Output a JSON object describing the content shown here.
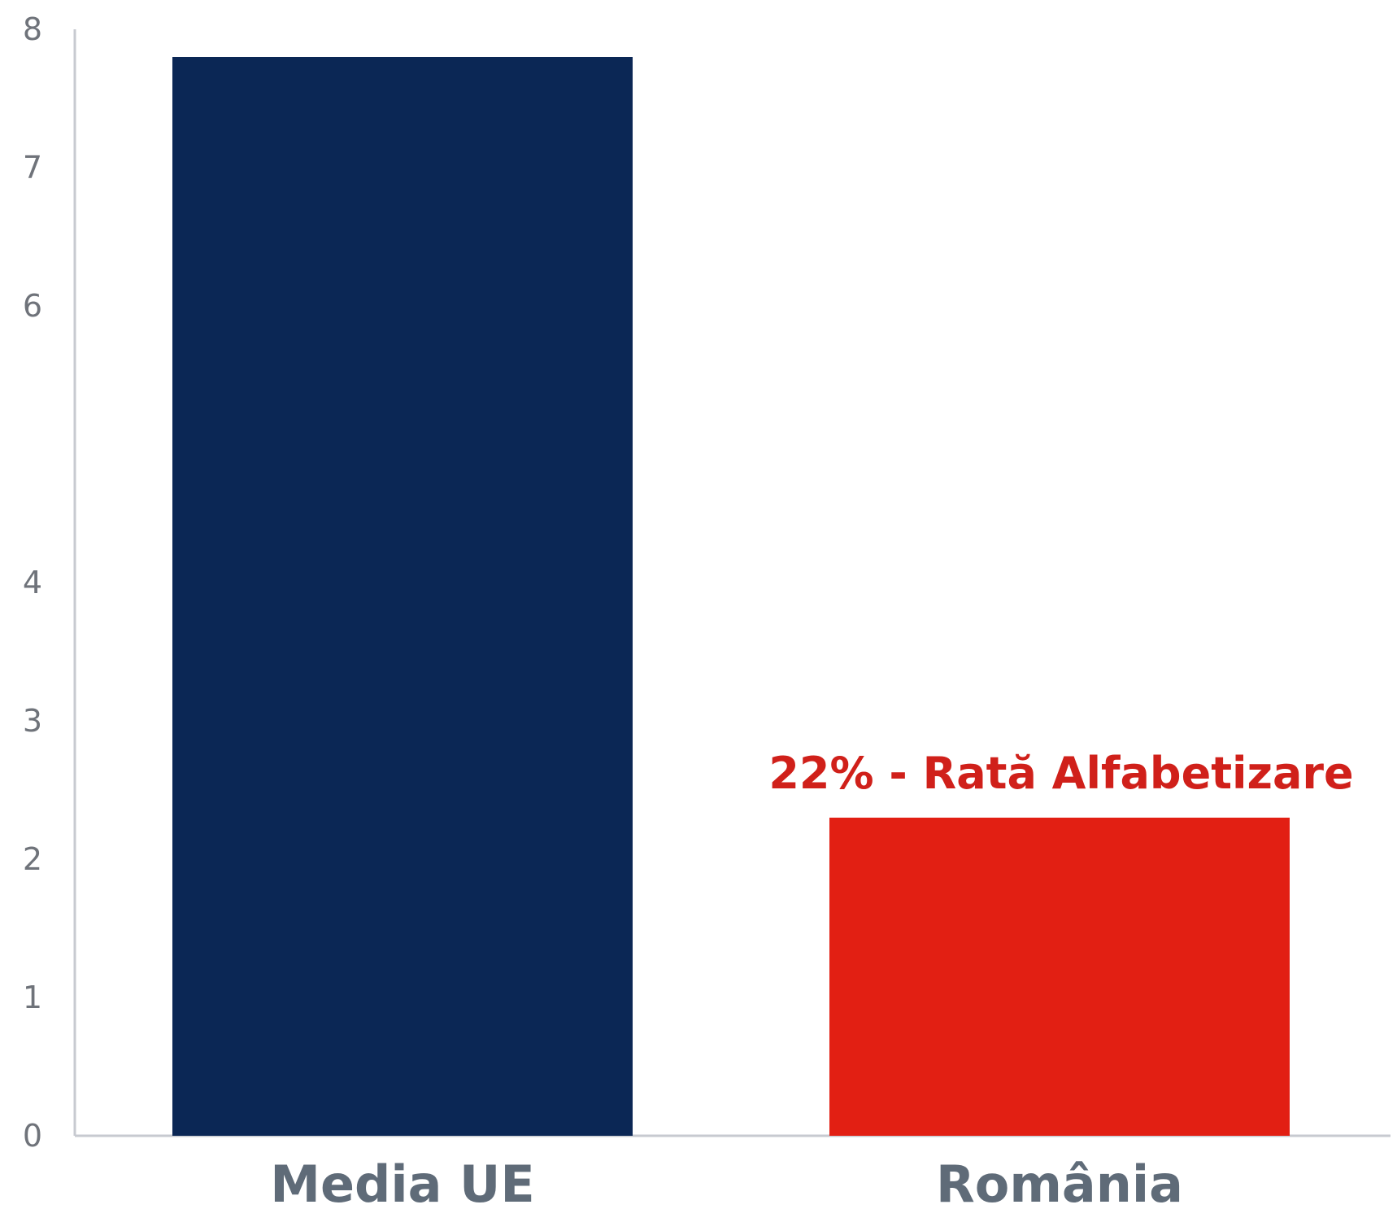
{
  "chart_data": {
    "type": "bar",
    "title": "",
    "xlabel": "",
    "ylabel": "",
    "categories": [
      "Media UE",
      "România"
    ],
    "values": [
      7.8,
      2.3
    ],
    "colors": [
      "#0b2755",
      "#e21f13"
    ],
    "yticks": [
      0,
      1,
      2,
      3,
      4,
      6,
      7,
      8
    ],
    "ylim": [
      0,
      8
    ],
    "grid": false,
    "legend": "none",
    "annotations": [
      {
        "category": "România",
        "text": "22% - Rată Alfabetizare",
        "color": "#d0201a"
      }
    ]
  }
}
